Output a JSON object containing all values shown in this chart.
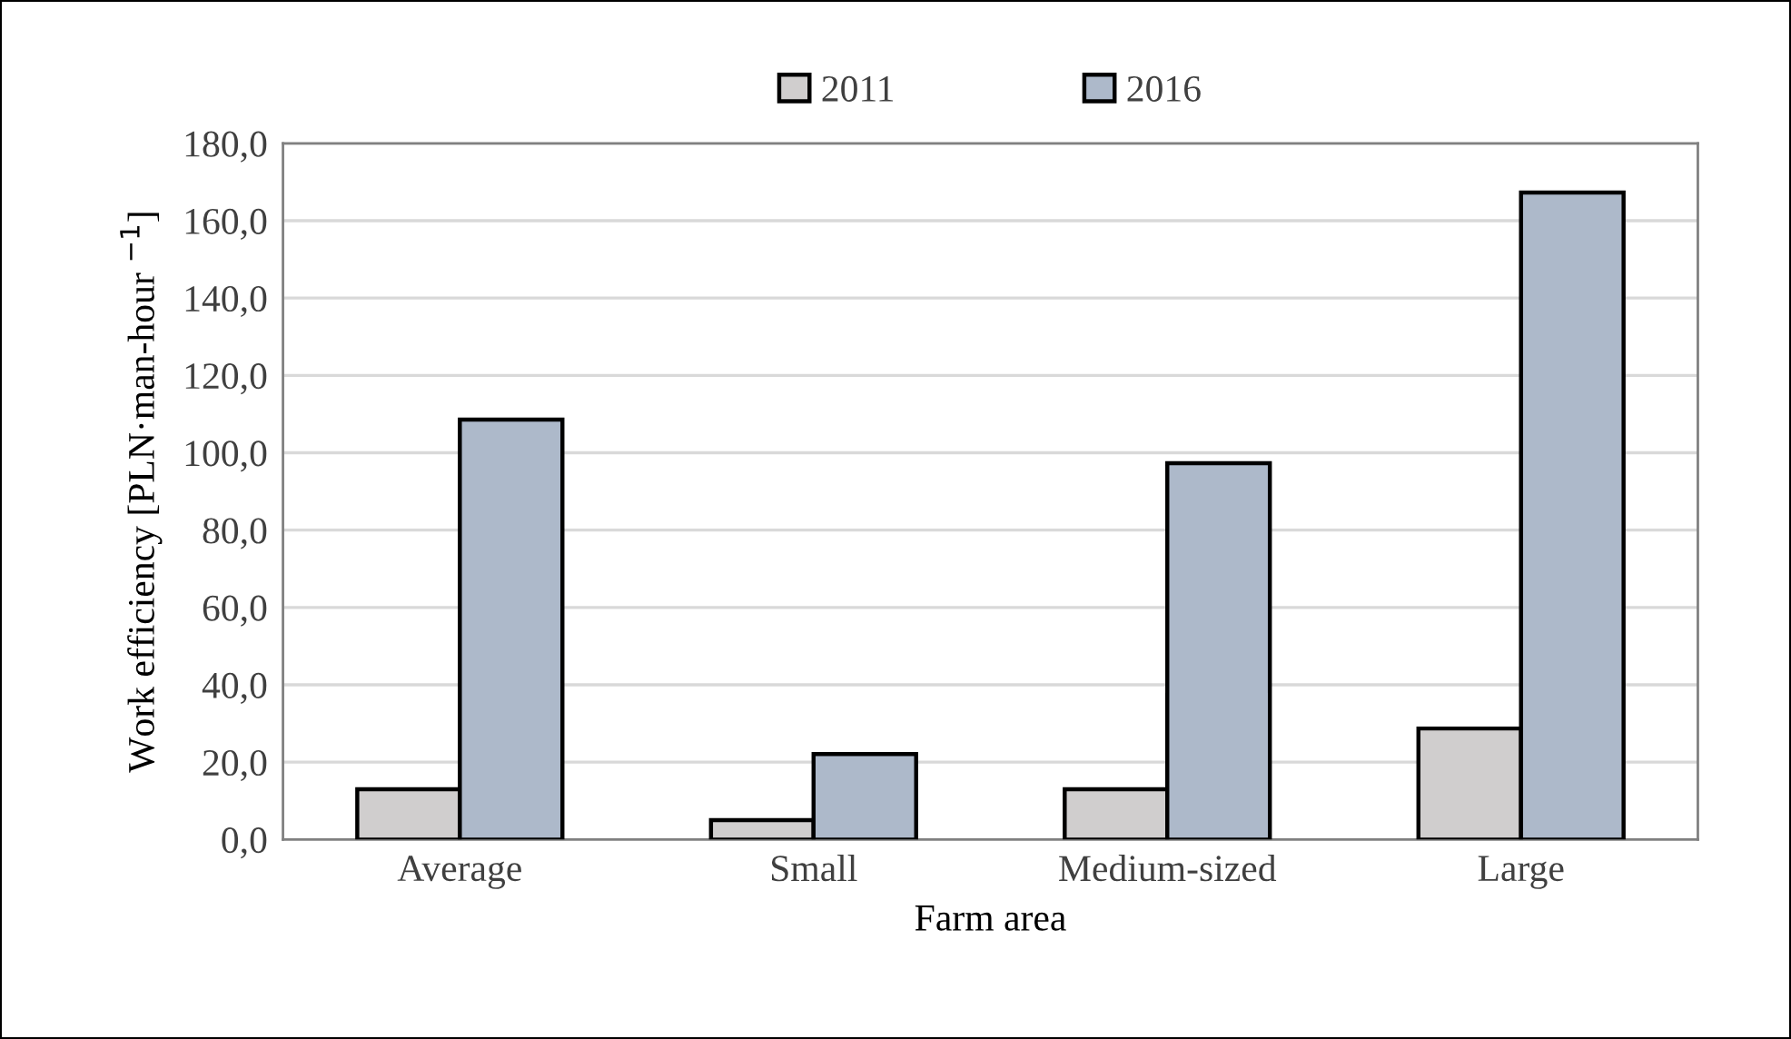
{
  "chart_data": {
    "type": "bar",
    "xlabel": "Farm area",
    "ylabel": "Work efficiency [PLN·man-hour $^{−1}$]",
    "categories": [
      "Average",
      "Small",
      "Medium-sized",
      "Large"
    ],
    "series": [
      {
        "name": "2011",
        "color": "#d0cece",
        "values": [
          13.0,
          5.0,
          13.0,
          28.7
        ]
      },
      {
        "name": "2016",
        "color": "#adb9ca",
        "values": [
          108.6,
          22.1,
          97.3,
          167.3
        ]
      }
    ],
    "ylim": [
      0,
      180
    ],
    "yticks": [
      {
        "value": 0,
        "label": "0,0"
      },
      {
        "value": 20,
        "label": "20,0"
      },
      {
        "value": 40,
        "label": "40,0"
      },
      {
        "value": 60,
        "label": "60,0"
      },
      {
        "value": 80,
        "label": "80,0"
      },
      {
        "value": 100,
        "label": "100,0"
      },
      {
        "value": 120,
        "label": "120,0"
      },
      {
        "value": 140,
        "label": "140,0"
      },
      {
        "value": 160,
        "label": "160,0"
      },
      {
        "value": 180,
        "label": "180,0"
      }
    ],
    "grid": "y",
    "legend": "top"
  }
}
